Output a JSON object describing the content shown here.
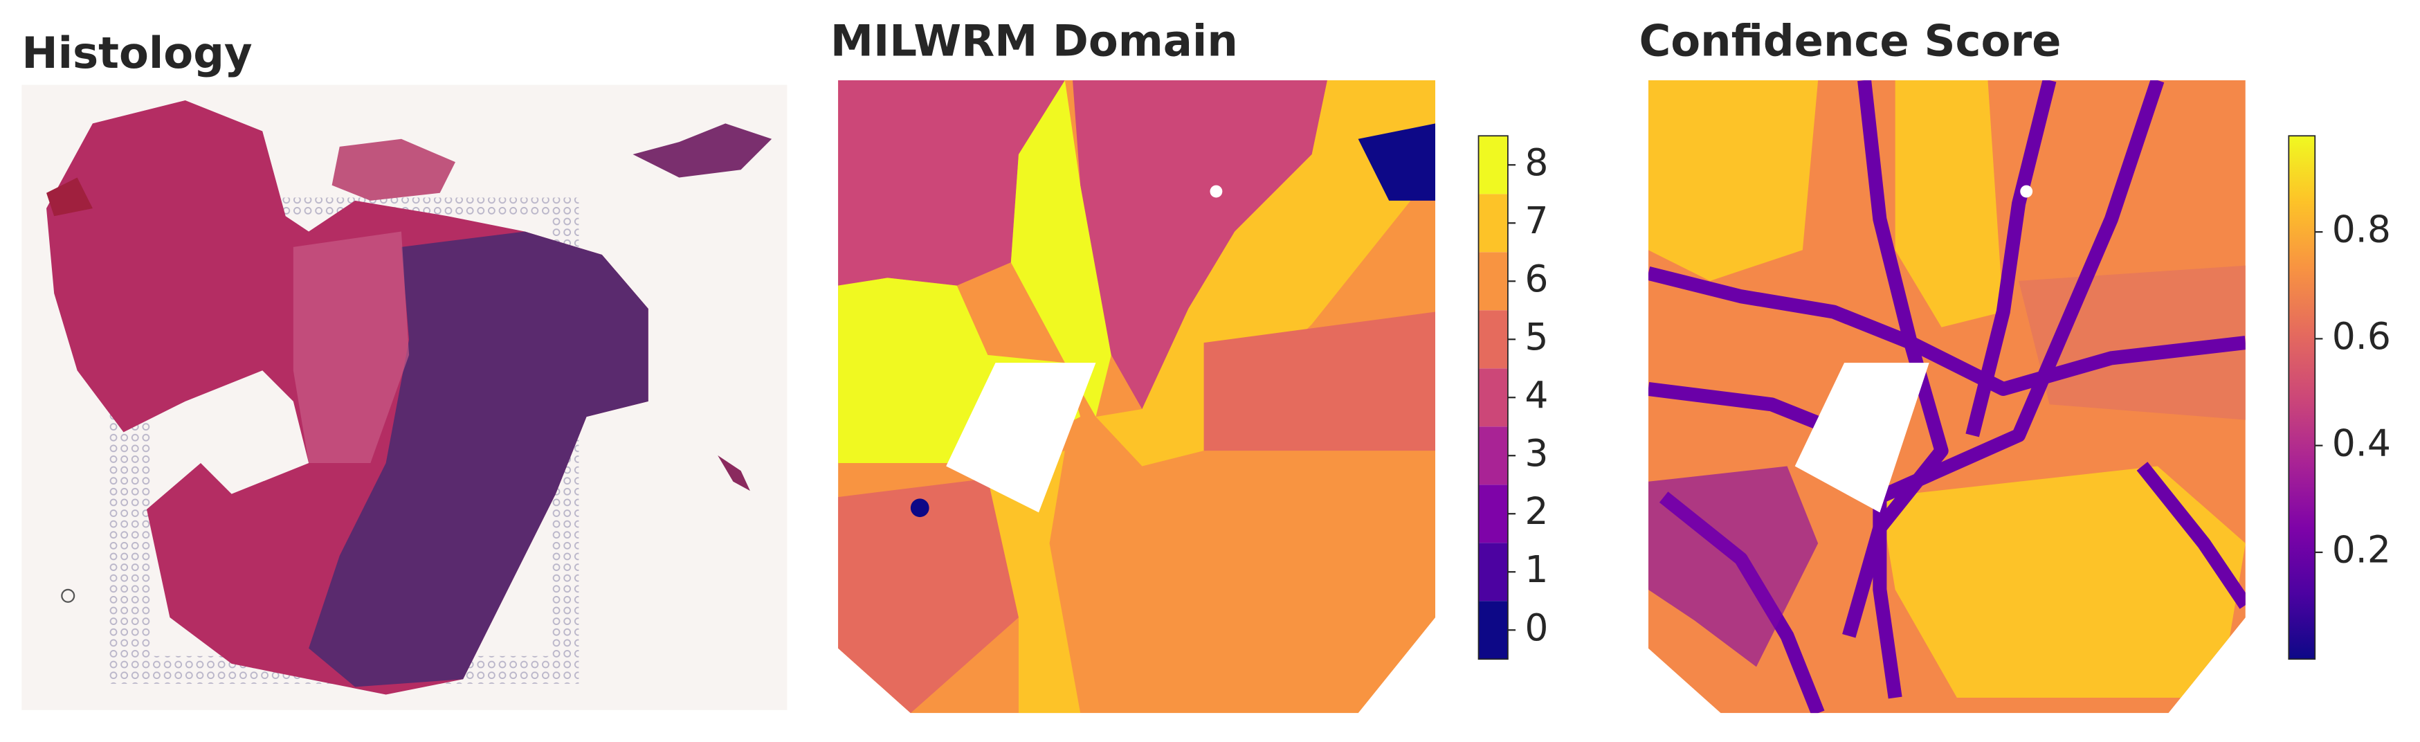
{
  "chart_data": [
    {
      "type": "image",
      "title": "Histology"
    },
    {
      "type": "spatial",
      "title": "MILWRM Domain",
      "colorbar": {
        "lim": [
          -0.5,
          8.5
        ],
        "ticks": [
          0,
          1,
          2,
          3,
          4,
          5,
          6,
          7,
          8
        ],
        "discrete": true,
        "colors": [
          "#0d0887",
          "#4c02a1",
          "#7e03a8",
          "#a92395",
          "#cc4778",
          "#e56b5d",
          "#f89441",
          "#fdc328",
          "#f0f921"
        ]
      }
    },
    {
      "type": "spatial",
      "title": "Confidence Score",
      "colorbar": {
        "lim": [
          0.0,
          0.98
        ],
        "ticks": [
          0.2,
          0.4,
          0.6,
          0.8
        ],
        "discrete": false,
        "colors": [
          "#0d0887",
          "#4c02a1",
          "#7e03a8",
          "#a92395",
          "#cc4778",
          "#e56b5d",
          "#f89441",
          "#fdc328",
          "#f0f921"
        ]
      }
    }
  ]
}
